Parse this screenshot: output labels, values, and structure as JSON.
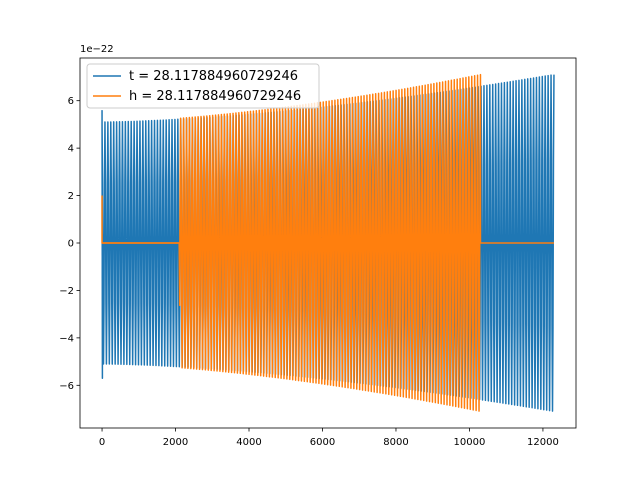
{
  "chart_data": {
    "type": "line",
    "title": "",
    "xlabel": "",
    "ylabel": "",
    "y_offset_text": "1e−22",
    "xlim": [
      -600,
      12900
    ],
    "ylim": [
      -7.8,
      7.8
    ],
    "xticks": [
      0,
      2000,
      4000,
      6000,
      8000,
      10000,
      12000
    ],
    "xtick_labels": [
      "0",
      "2000",
      "4000",
      "6000",
      "8000",
      "10000",
      "12000"
    ],
    "yticks": [
      -6,
      -4,
      -2,
      0,
      2,
      4,
      6
    ],
    "ytick_labels": [
      "−6",
      "−4",
      "−2",
      "0",
      "2",
      "4",
      "6"
    ],
    "grid": false,
    "legend_position": "upper-left",
    "series": [
      {
        "name": "t = 28.117884960729246",
        "color": "#1f77b4",
        "x_start": 0,
        "x_end": 12300,
        "start_value": 5.6,
        "amplitude_start": 5.1,
        "amplitude_end": 7.1,
        "cycles": 155,
        "flat_segments": [],
        "trailing_flat_value": 0,
        "spike_at_start": -5.7
      },
      {
        "name": "h = 28.117884960729246",
        "color": "#ff7f0e",
        "x_start": 0,
        "x_end": 10300,
        "start_value": 2.0,
        "amplitude_start": 5.1,
        "amplitude_end": 7.1,
        "cycles": 130,
        "flat_segments": [
          [
            0,
            2100
          ]
        ],
        "flat_value": 0,
        "trailing_flat_value": 0,
        "trailing_flat_to": 12300
      }
    ]
  }
}
